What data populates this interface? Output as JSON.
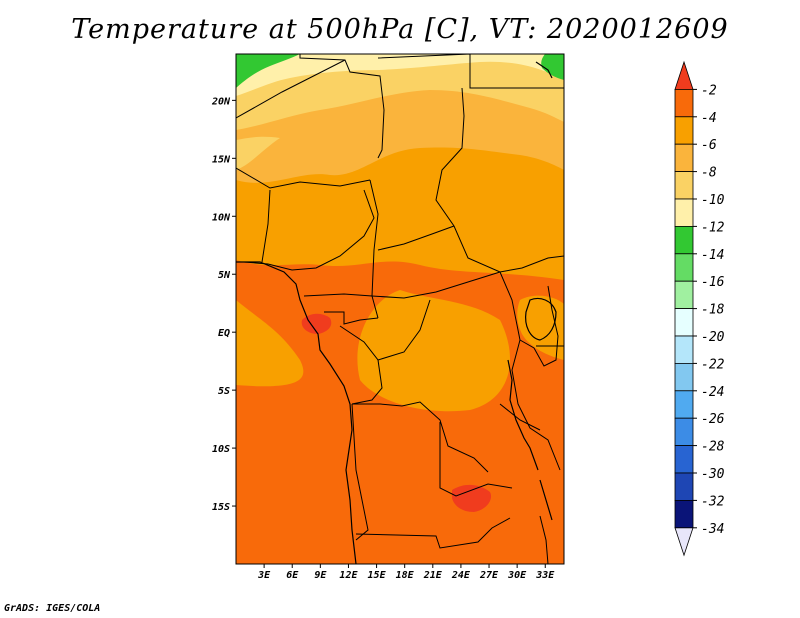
{
  "title": "Temperature at 500hPa [C], VT: 2020012609",
  "credit": "GrADS: IGES/COLA",
  "units": "C",
  "valid_time": "2020012609",
  "lat_labels": [
    {
      "lat": 20,
      "label": "20N"
    },
    {
      "lat": 15,
      "label": "15N"
    },
    {
      "lat": 10,
      "label": "10N"
    },
    {
      "lat": 5,
      "label": "5N"
    },
    {
      "lat": 0,
      "label": "EQ"
    },
    {
      "lat": -5,
      "label": "5S"
    },
    {
      "lat": -10,
      "label": "10S"
    },
    {
      "lat": -15,
      "label": "15S"
    }
  ],
  "lon_labels": [
    {
      "lon": 3,
      "label": "3E"
    },
    {
      "lon": 6,
      "label": "6E"
    },
    {
      "lon": 9,
      "label": "9E"
    },
    {
      "lon": 12,
      "label": "12E"
    },
    {
      "lon": 15,
      "label": "15E"
    },
    {
      "lon": 18,
      "label": "18E"
    },
    {
      "lon": 21,
      "label": "21E"
    },
    {
      "lon": 24,
      "label": "24E"
    },
    {
      "lon": 27,
      "label": "27E"
    },
    {
      "lon": 30,
      "label": "30E"
    },
    {
      "lon": 33,
      "label": "33E"
    }
  ],
  "colorbar": {
    "labels": [
      "-2",
      "-4",
      "-6",
      "-8",
      "-10",
      "-12",
      "-14",
      "-16",
      "-18",
      "-20",
      "-22",
      "-24",
      "-26",
      "-28",
      "-30",
      "-32",
      "-34"
    ],
    "colors": [
      "#f03c1e",
      "#f86a0a",
      "#f8a000",
      "#fab43c",
      "#fad264",
      "#fff0aa",
      "#32c832",
      "#64dc64",
      "#a0f0a0",
      "#e6ffff",
      "#b4e6fa",
      "#82c8f0",
      "#50aaf0",
      "#3c8ce6",
      "#2864d2",
      "#1e46b4",
      "#0a1478",
      "#e8e6fa"
    ]
  },
  "chart_data": {
    "type": "heatmap",
    "title": "Temperature at 500hPa [C], VT: 2020012609",
    "variable": "Temperature at 500hPa",
    "units": "C",
    "valid_time": "2020012609",
    "lon_range": [
      0,
      35
    ],
    "lat_range": [
      -20,
      24
    ],
    "contour_levels": [
      -34,
      -32,
      -30,
      -28,
      -26,
      -24,
      -22,
      -20,
      -18,
      -16,
      -14,
      -12,
      -10,
      -8,
      -6,
      -4,
      -2
    ],
    "regions": [
      {
        "area": "northern Sahara edge (~23-24N, 0-4E and 33-35E)",
        "value_range": [
          -14,
          -12
        ]
      },
      {
        "area": "north (~19-24N)",
        "value_range": [
          -12,
          -10
        ]
      },
      {
        "area": "north Sahel band (~16-20N)",
        "value_range": [
          -10,
          -8
        ]
      },
      {
        "area": "Sahel / central (~5-16N)",
        "value_range": [
          -6,
          -4
        ]
      },
      {
        "area": "Gulf of Guinea / Congo (~5N-5S)",
        "value_range": [
          -4,
          -2
        ]
      },
      {
        "area": "local max near 2N 7E",
        "value_range": [
          -2,
          0
        ]
      },
      {
        "area": "southern Africa / Atlantic (~5S-20S)",
        "value_range": [
          -4,
          -2
        ]
      },
      {
        "area": "local max near 15S 24E",
        "value_range": [
          -2,
          0
        ]
      }
    ]
  }
}
